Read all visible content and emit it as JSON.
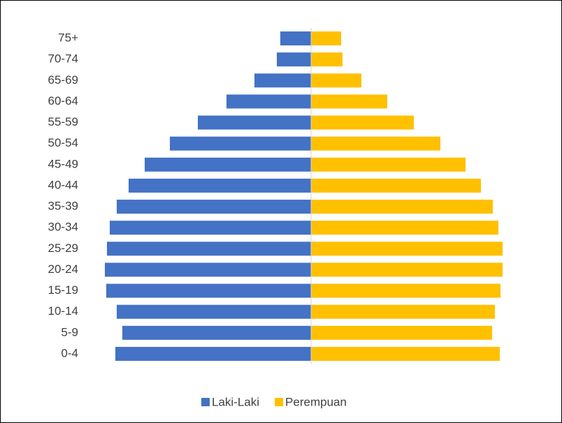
{
  "chart_data": {
    "type": "pyramid",
    "categories": [
      "75+",
      "70-74",
      "65-69",
      "60-64",
      "55-59",
      "50-54",
      "45-49",
      "40-44",
      "35-39",
      "30-34",
      "25-29",
      "20-24",
      "15-19",
      "10-14",
      "5-9",
      "0-4"
    ],
    "series": [
      {
        "name": "Laki-Laki",
        "color": "#4472c4",
        "side": "left",
        "values": [
          44,
          49,
          81,
          121,
          162,
          202,
          238,
          261,
          278,
          288,
          292,
          295,
          293,
          278,
          270,
          280
        ]
      },
      {
        "name": "Perempuan",
        "color": "#ffc000",
        "side": "right",
        "values": [
          43,
          45,
          72,
          109,
          147,
          185,
          221,
          243,
          260,
          268,
          274,
          274,
          271,
          263,
          259,
          270
        ]
      }
    ],
    "xlim": [
      -300,
      300
    ],
    "legend": "bottom"
  }
}
